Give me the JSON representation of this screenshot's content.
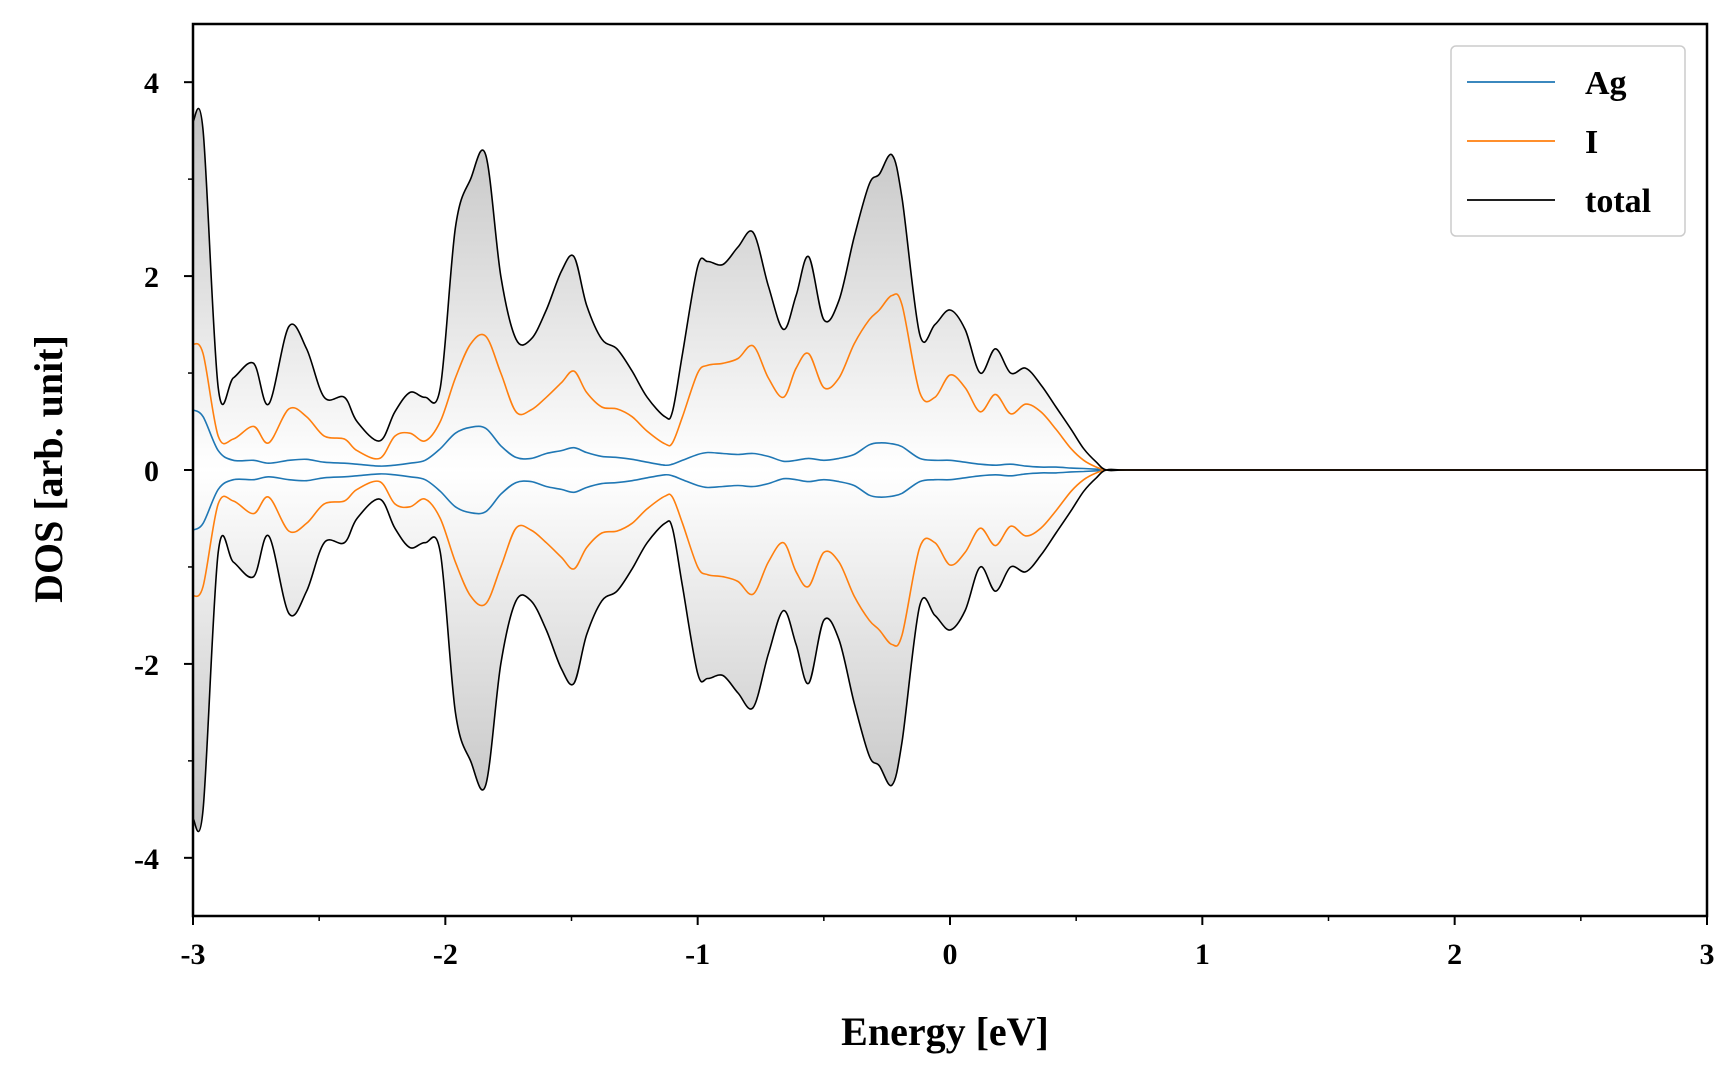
{
  "chart_data": {
    "type": "area",
    "title": "",
    "xlabel": "Energy [eV]",
    "ylabel": "DOS [arb. unit]",
    "xlim": [
      -3,
      3
    ],
    "ylim": [
      -4.6,
      4.6
    ],
    "xticks": [
      -3,
      -2,
      -1,
      0,
      1,
      2,
      3
    ],
    "xtick_labels": [
      "-3",
      "-2",
      "-1",
      "0",
      "1",
      "2",
      "3"
    ],
    "yticks": [
      4,
      2,
      0,
      -2,
      -4
    ],
    "ytick_labels": [
      "4",
      "2",
      "0",
      "-2",
      "-4"
    ],
    "mirrored": true,
    "legend_position": "top-right",
    "grid": false,
    "x": [
      -3.0,
      -2.96,
      -2.9,
      -2.84,
      -2.76,
      -2.7,
      -2.62,
      -2.55,
      -2.48,
      -2.4,
      -2.35,
      -2.26,
      -2.2,
      -2.14,
      -2.08,
      -2.02,
      -1.96,
      -1.9,
      -1.84,
      -1.78,
      -1.72,
      -1.66,
      -1.6,
      -1.54,
      -1.49,
      -1.44,
      -1.38,
      -1.32,
      -1.26,
      -1.2,
      -1.13,
      -1.1,
      -1.06,
      -1.0,
      -0.96,
      -0.9,
      -0.84,
      -0.78,
      -0.72,
      -0.66,
      -0.61,
      -0.56,
      -0.5,
      -0.44,
      -0.38,
      -0.32,
      -0.28,
      -0.23,
      -0.19,
      -0.12,
      -0.06,
      0.0,
      0.06,
      0.12,
      0.18,
      0.24,
      0.3,
      0.36,
      0.42,
      0.48,
      0.53,
      0.58,
      0.62,
      0.7,
      1.0,
      2.0,
      3.0
    ],
    "series": [
      {
        "name": "Ag",
        "color": "#1f77b4",
        "values": [
          0.62,
          0.55,
          0.2,
          0.1,
          0.1,
          0.07,
          0.1,
          0.11,
          0.08,
          0.07,
          0.06,
          0.04,
          0.05,
          0.07,
          0.1,
          0.22,
          0.38,
          0.44,
          0.43,
          0.25,
          0.13,
          0.12,
          0.17,
          0.2,
          0.23,
          0.18,
          0.14,
          0.13,
          0.11,
          0.08,
          0.05,
          0.06,
          0.1,
          0.16,
          0.18,
          0.17,
          0.16,
          0.17,
          0.14,
          0.09,
          0.1,
          0.12,
          0.1,
          0.12,
          0.16,
          0.26,
          0.28,
          0.27,
          0.24,
          0.12,
          0.1,
          0.1,
          0.08,
          0.06,
          0.05,
          0.06,
          0.04,
          0.03,
          0.03,
          0.02,
          0.015,
          0.008,
          0.0,
          0.0,
          0.0,
          0.0,
          0.0
        ]
      },
      {
        "name": "I",
        "color": "#ff7f0e",
        "values": [
          1.3,
          1.2,
          0.35,
          0.32,
          0.45,
          0.28,
          0.63,
          0.55,
          0.35,
          0.32,
          0.2,
          0.12,
          0.35,
          0.38,
          0.3,
          0.5,
          0.95,
          1.3,
          1.38,
          1.0,
          0.6,
          0.62,
          0.75,
          0.9,
          1.02,
          0.8,
          0.65,
          0.63,
          0.55,
          0.4,
          0.27,
          0.28,
          0.55,
          1.0,
          1.08,
          1.1,
          1.15,
          1.28,
          0.95,
          0.75,
          1.05,
          1.2,
          0.85,
          0.95,
          1.3,
          1.55,
          1.65,
          1.8,
          1.7,
          0.8,
          0.75,
          0.98,
          0.85,
          0.6,
          0.78,
          0.58,
          0.68,
          0.6,
          0.42,
          0.22,
          0.1,
          0.03,
          0.0,
          0.0,
          0.0,
          0.0,
          0.0
        ]
      },
      {
        "name": "total",
        "color": "#000000",
        "values": [
          3.6,
          3.5,
          0.85,
          0.95,
          1.1,
          0.68,
          1.48,
          1.25,
          0.75,
          0.75,
          0.5,
          0.3,
          0.6,
          0.8,
          0.75,
          0.85,
          2.5,
          3.0,
          3.25,
          2.0,
          1.35,
          1.35,
          1.65,
          2.05,
          2.2,
          1.7,
          1.35,
          1.25,
          1.02,
          0.75,
          0.55,
          0.6,
          1.2,
          2.1,
          2.15,
          2.12,
          2.3,
          2.45,
          1.9,
          1.45,
          1.8,
          2.2,
          1.55,
          1.75,
          2.4,
          2.95,
          3.05,
          3.25,
          2.8,
          1.4,
          1.5,
          1.65,
          1.45,
          1.0,
          1.25,
          1.0,
          1.05,
          0.88,
          0.65,
          0.42,
          0.22,
          0.08,
          0.0,
          0.0,
          0.0,
          0.0,
          0.0
        ]
      }
    ]
  }
}
